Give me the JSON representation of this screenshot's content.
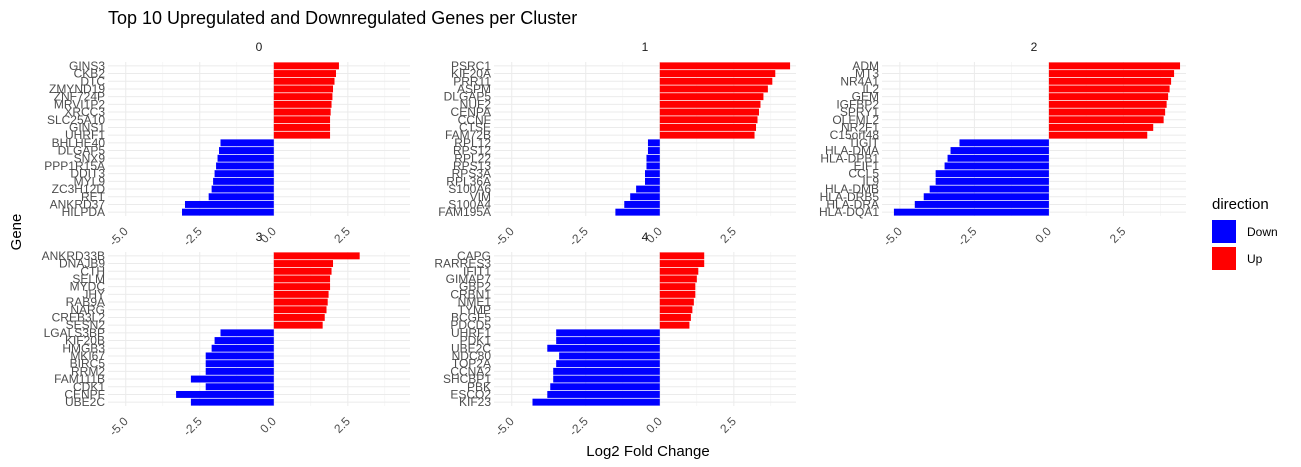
{
  "chart_data": {
    "type": "bar",
    "title": "Top 10 Upregulated and Downregulated Genes per Cluster",
    "xlabel": "Log2 Fold Change",
    "ylabel": "Gene",
    "orientation": "horizontal",
    "facets": "wrap 3 columns, shared x axis",
    "grid": true,
    "xticks": [
      -5.0,
      -2.5,
      0.0,
      2.5
    ],
    "xtick_labels": [
      "-5.0",
      "-2.5",
      "0.0",
      "2.5"
    ],
    "xlim": [
      -5.6,
      4.6
    ],
    "legend": {
      "title": "direction",
      "position": "right",
      "entries": [
        {
          "label": "Down",
          "color": "#0000FF"
        },
        {
          "label": "Up",
          "color": "#FF0000"
        }
      ]
    },
    "panels": [
      {
        "title": "0",
        "genes": [
          "GINS3",
          "CKB2",
          "DTC",
          "ZMYND19",
          "ZNF724P",
          "MRVI1P2",
          "XRCC3",
          "SLC25A10",
          "GINS1",
          "UHRF1",
          "BHLHE40",
          "DLGAP5",
          "SNX9",
          "PPP1R15A",
          "DDIT3",
          "MYL9",
          "ZC3H12D",
          "RET",
          "ANKRD37",
          "HILPDA"
        ],
        "values": [
          2.2,
          2.1,
          2.05,
          2.0,
          1.98,
          1.95,
          1.92,
          1.9,
          1.9,
          1.9,
          -1.8,
          -1.85,
          -1.9,
          -1.95,
          -2.0,
          -2.05,
          -2.1,
          -2.2,
          -3.0,
          -3.1
        ],
        "directions": [
          "Up",
          "Up",
          "Up",
          "Up",
          "Up",
          "Up",
          "Up",
          "Up",
          "Up",
          "Up",
          "Down",
          "Down",
          "Down",
          "Down",
          "Down",
          "Down",
          "Down",
          "Down",
          "Down",
          "Down"
        ]
      },
      {
        "title": "1",
        "genes": [
          "PSRC1",
          "KIF20A",
          "PRR11",
          "ASPM",
          "DLGAP5",
          "NUF2",
          "CENPA",
          "CCNF",
          "CTSE",
          "FAM72B",
          "RPL12",
          "RPS12",
          "RPL22",
          "RPS13",
          "RPS3A",
          "RPL36A",
          "S100A6",
          "VIM",
          "S100A4",
          "FAM195A"
        ],
        "values": [
          4.4,
          3.9,
          3.8,
          3.65,
          3.5,
          3.4,
          3.35,
          3.3,
          3.25,
          3.2,
          -0.4,
          -0.4,
          -0.45,
          -0.45,
          -0.5,
          -0.5,
          -0.8,
          -1.0,
          -1.2,
          -1.5
        ],
        "directions": [
          "Up",
          "Up",
          "Up",
          "Up",
          "Up",
          "Up",
          "Up",
          "Up",
          "Up",
          "Up",
          "Down",
          "Down",
          "Down",
          "Down",
          "Down",
          "Down",
          "Down",
          "Down",
          "Down",
          "Down"
        ]
      },
      {
        "title": "2",
        "genes": [
          "ADM",
          "MT3",
          "NR4A1",
          "IL2",
          "GEM",
          "IGFBP2",
          "SPRY1",
          "OLFML2",
          "NR2F1",
          "C15orf48",
          "TIGIT",
          "HLA-DMA",
          "HLA-DPB1",
          "EIF1",
          "CCL5",
          "IL9",
          "HLA-DMB",
          "HLA-DRB5",
          "HLA-DRA",
          "HLA-DQA1"
        ],
        "values": [
          4.4,
          4.2,
          4.1,
          4.05,
          4.0,
          3.95,
          3.9,
          3.85,
          3.5,
          3.3,
          -3.0,
          -3.3,
          -3.4,
          -3.5,
          -3.8,
          -3.8,
          -4.0,
          -4.2,
          -4.5,
          -5.2
        ],
        "directions": [
          "Up",
          "Up",
          "Up",
          "Up",
          "Up",
          "Up",
          "Up",
          "Up",
          "Up",
          "Up",
          "Down",
          "Down",
          "Down",
          "Down",
          "Down",
          "Down",
          "Down",
          "Down",
          "Down",
          "Down"
        ]
      },
      {
        "title": "3",
        "genes": [
          "ANKRD33B",
          "DNAJB9",
          "CTH",
          "SELM",
          "MYDC",
          "JHY",
          "RAB9A",
          "NARG",
          "CREB3L2",
          "SESN2",
          "LGALS3BP",
          "KIF20B",
          "HMGB3",
          "MKI67",
          "BIRC5",
          "RRM2",
          "FAM111B",
          "CDK1",
          "CENPF",
          "UBE2C"
        ],
        "values": [
          2.9,
          2.0,
          1.95,
          1.9,
          1.9,
          1.85,
          1.82,
          1.78,
          1.72,
          1.65,
          -1.8,
          -2.0,
          -2.1,
          -2.3,
          -2.3,
          -2.3,
          -2.8,
          -2.3,
          -3.3,
          -2.8
        ],
        "directions": [
          "Up",
          "Up",
          "Up",
          "Up",
          "Up",
          "Up",
          "Up",
          "Up",
          "Up",
          "Up",
          "Down",
          "Down",
          "Down",
          "Down",
          "Down",
          "Down",
          "Down",
          "Down",
          "Down",
          "Down"
        ]
      },
      {
        "title": "4",
        "genes": [
          "CAPG",
          "RARRES3",
          "IFIT1",
          "GIMAP7",
          "GBP2",
          "CRBN1",
          "NME1",
          "TYMP",
          "BCGF5",
          "PDCD5",
          "UHRF1",
          "PDK1",
          "UBE2C",
          "NDC80",
          "TOP2A",
          "CCNA2",
          "SHCBP1",
          "PBK",
          "ESCO2",
          "KIF23"
        ],
        "values": [
          1.5,
          1.5,
          1.3,
          1.25,
          1.2,
          1.2,
          1.15,
          1.1,
          1.05,
          1.0,
          -3.5,
          -3.5,
          -3.8,
          -3.4,
          -3.5,
          -3.6,
          -3.6,
          -3.7,
          -3.8,
          -4.3
        ],
        "directions": [
          "Up",
          "Up",
          "Up",
          "Up",
          "Up",
          "Up",
          "Up",
          "Up",
          "Up",
          "Up",
          "Down",
          "Down",
          "Down",
          "Down",
          "Down",
          "Down",
          "Down",
          "Down",
          "Down",
          "Down"
        ]
      }
    ]
  }
}
